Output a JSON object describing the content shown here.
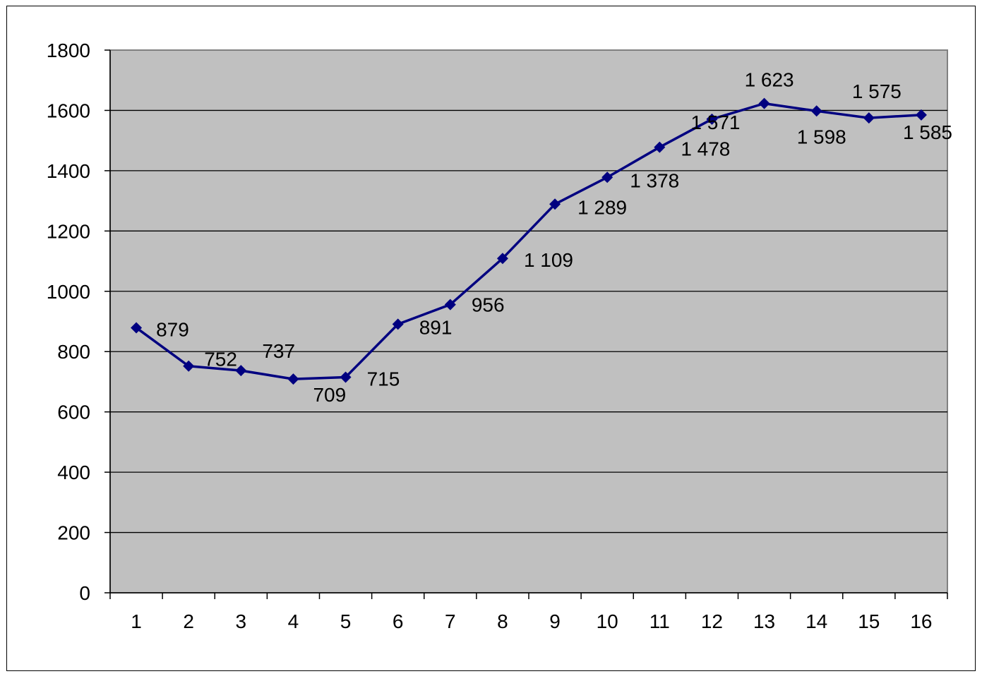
{
  "chart_data": {
    "type": "line",
    "title": "",
    "xlabel": "",
    "ylabel": "",
    "categories": [
      "1",
      "2",
      "3",
      "4",
      "5",
      "6",
      "7",
      "8",
      "9",
      "10",
      "11",
      "12",
      "13",
      "14",
      "15",
      "16"
    ],
    "series": [
      {
        "values": [
          879,
          752,
          737,
          709,
          715,
          891,
          956,
          1109,
          1289,
          1378,
          1478,
          1571,
          1623,
          1598,
          1575,
          1585
        ],
        "data_labels": [
          "879",
          "752",
          "737",
          "709",
          "715",
          "891",
          "956",
          "1 109",
          "1 289",
          "1 378",
          "1 478",
          "1 571",
          "1 623",
          "1 598",
          "1 575",
          "1 585"
        ]
      }
    ],
    "ylim": [
      0,
      1800
    ],
    "yticks": [
      0,
      200,
      400,
      600,
      800,
      1000,
      1200,
      1400,
      1600,
      1800
    ],
    "grid": "horizontal",
    "legend": "none",
    "colors": {
      "line": "#000080",
      "plot_background": "#c0c0c0",
      "gridline": "#000000"
    }
  }
}
